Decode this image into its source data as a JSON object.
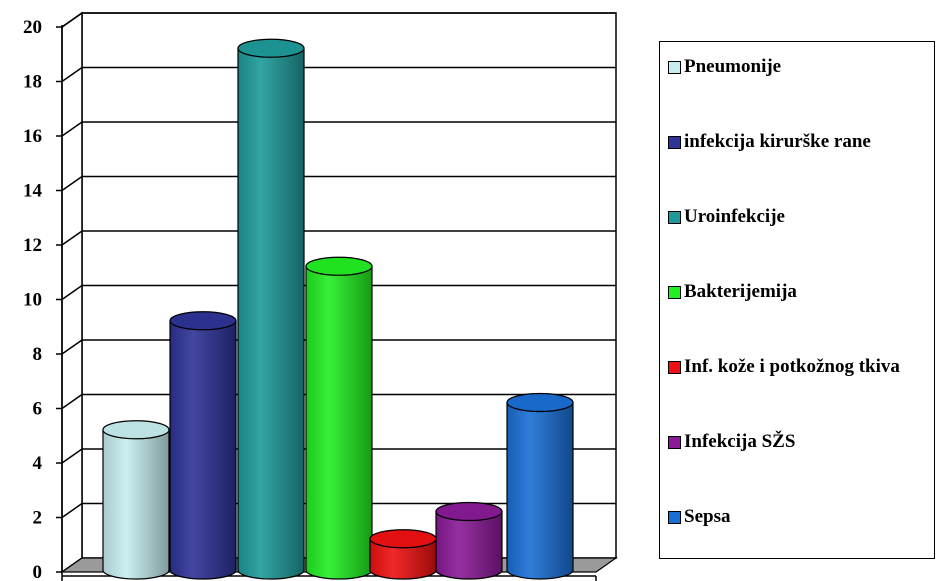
{
  "chart_data": {
    "type": "bar",
    "categories": [
      "Pneumonije",
      "infekcija kirurške rane",
      "Uroinfekcije",
      "Bakterijemija",
      "Inf. kože i potkožnog tkiva",
      "Infekcija SŽS",
      "Sepsa"
    ],
    "values": [
      5,
      9,
      19,
      11,
      1,
      2,
      6
    ],
    "colors": [
      "#c6eef0",
      "#2e3396",
      "#1f9a9a",
      "#22ee22",
      "#ee1111",
      "#8a1a96",
      "#1a6fd6"
    ],
    "ylim": [
      0,
      20
    ],
    "yticks": [
      "0",
      "2",
      "4",
      "6",
      "8",
      "10",
      "12",
      "14",
      "16",
      "18",
      "20"
    ],
    "grid": true,
    "legend_position": "right",
    "style": "3d-cylinder"
  }
}
